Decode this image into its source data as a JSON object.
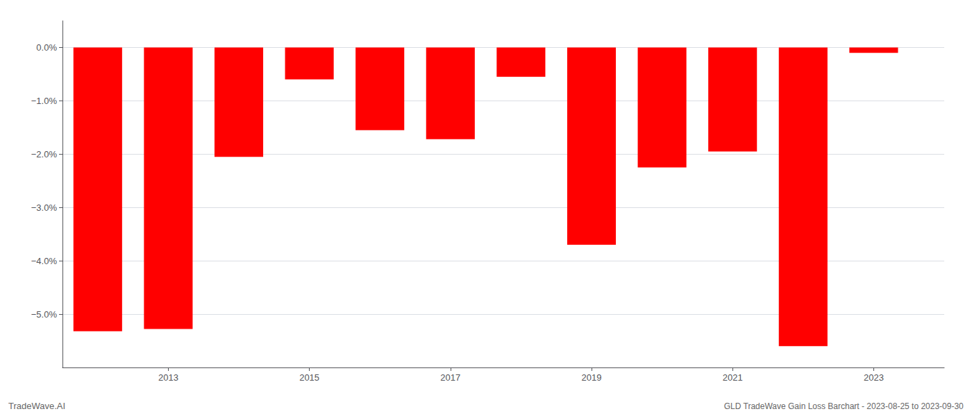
{
  "chart_data": {
    "type": "bar",
    "x": [
      2012,
      2013,
      2014,
      2015,
      2016,
      2017,
      2018,
      2019,
      2020,
      2021,
      2022,
      2023
    ],
    "values": [
      -5.32,
      -5.28,
      -2.05,
      -0.6,
      -1.55,
      -1.72,
      -0.55,
      -3.7,
      -2.25,
      -1.95,
      -5.6,
      -0.1
    ],
    "color": "#ff0000",
    "xlim": [
      2011.5,
      2024.0
    ],
    "xticks": [
      2013,
      2015,
      2017,
      2019,
      2021,
      2023
    ],
    "ylim": [
      -6.0,
      0.5
    ],
    "yticks": [
      {
        "value": 0.0,
        "label": "0.0%"
      },
      {
        "value": -1.0,
        "label": "−1.0%"
      },
      {
        "value": -2.0,
        "label": "−2.0%"
      },
      {
        "value": -3.0,
        "label": "−3.0%"
      },
      {
        "value": -4.0,
        "label": "−4.0%"
      },
      {
        "value": -5.0,
        "label": "−5.0%"
      }
    ],
    "grid": true,
    "annotations": [
      "TradeWave.AI",
      "GLD TradeWave Gain Loss Barchart - 2023-08-25 to 2023-09-30"
    ]
  }
}
